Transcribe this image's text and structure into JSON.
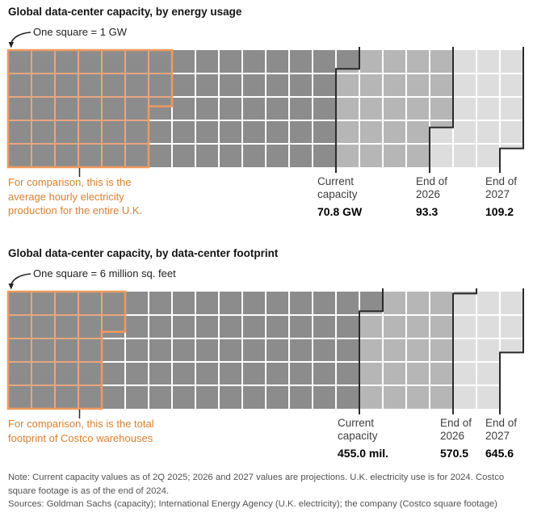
{
  "colors": {
    "current_fill": "#8c8c8c",
    "y2026_fill": "#b6b6b6",
    "y2027_fill": "#dddddd",
    "grid_gap": "#ffffff",
    "marker_line": "#2b2b2b",
    "comparison_outline": "#f0995f",
    "comparison_inner_grid": "#e8a57e",
    "comparison_text": "#db7f2d",
    "arrow": "#222222"
  },
  "chart_data": [
    {
      "type": "waffle",
      "title": "Global data-center capacity, by energy usage",
      "legend": "One square = 1 GW",
      "unit_per_square": 1,
      "grid": {
        "columns": 22,
        "rows": 5
      },
      "series": [
        {
          "name": "Current\ncapacity",
          "value": 70.8,
          "label": "70.8 GW",
          "color": "#8c8c8c"
        },
        {
          "name": "End of\n2026",
          "value": 93.3,
          "label": "93.3",
          "color": "#b6b6b6"
        },
        {
          "name": "End of\n2027",
          "value": 109.2,
          "label": "109.2",
          "color": "#dddddd"
        }
      ],
      "comparison": {
        "value": 32.4,
        "caption": "For comparison, this is the\naverage hourly electricity\nproduction for the entire U.K."
      }
    },
    {
      "type": "waffle",
      "title": "Global data-center capacity, by data-center footprint",
      "legend": "One square = 6 million sq. feet",
      "unit_per_square": 6,
      "grid": {
        "columns": 22,
        "rows": 5
      },
      "series": [
        {
          "name": "Current\ncapacity",
          "value": 455.0,
          "label": "455.0 mil.",
          "color": "#8c8c8c"
        },
        {
          "name": "End of\n2026",
          "value": 570.5,
          "label": "570.5",
          "color": "#b6b6b6"
        },
        {
          "name": "End of\n2027",
          "value": 645.6,
          "label": "645.6",
          "color": "#dddddd"
        }
      ],
      "comparison": {
        "value": 130.3,
        "caption": "For comparison, this is the total\nfootprint of Costco warehouses"
      }
    }
  ],
  "footer": {
    "note": "Note: Current capacity values as of 2Q 2025; 2026 and 2027 values are projections. U.K. electricity use is for 2024. Costco square footage is as of the end of 2024.",
    "sources": "Sources: Goldman Sachs (capacity); International Energy Agency (U.K. electricity); the company (Costco square footage)"
  }
}
